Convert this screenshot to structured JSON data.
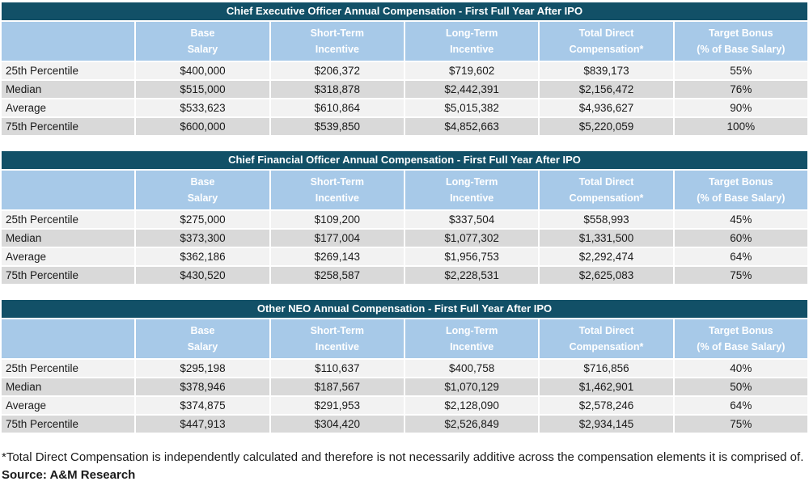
{
  "colors": {
    "title_bar_background": "#125067",
    "header_background": "#A7C9E8",
    "row_light": "#F2F2F2",
    "row_dark": "#D9D9D9",
    "header_text": "#FFFFFF",
    "body_text": "#1A1A1A"
  },
  "columns": [
    [
      "Base",
      "Salary"
    ],
    [
      "Short-Term",
      "Incentive"
    ],
    [
      "Long-Term",
      "Incentive"
    ],
    [
      "Total Direct",
      "Compensation*"
    ],
    [
      "Target Bonus",
      "(% of Base Salary)"
    ]
  ],
  "tables": [
    {
      "title": "Chief Executive Officer Annual Compensation - First Full Year After IPO",
      "rows": [
        {
          "label": "25th Percentile",
          "values": [
            "$400,000",
            "$206,372",
            "$719,602",
            "$839,173",
            "55%"
          ]
        },
        {
          "label": "Median",
          "values": [
            "$515,000",
            "$318,878",
            "$2,442,391",
            "$2,156,472",
            "76%"
          ]
        },
        {
          "label": "Average",
          "values": [
            "$533,623",
            "$610,864",
            "$5,015,382",
            "$4,936,627",
            "90%"
          ]
        },
        {
          "label": "75th Percentile",
          "values": [
            "$600,000",
            "$539,850",
            "$4,852,663",
            "$5,220,059",
            "100%"
          ]
        }
      ]
    },
    {
      "title": "Chief Financial Officer Annual Compensation - First Full Year After IPO",
      "rows": [
        {
          "label": "25th Percentile",
          "values": [
            "$275,000",
            "$109,200",
            "$337,504",
            "$558,993",
            "45%"
          ]
        },
        {
          "label": "Median",
          "values": [
            "$373,300",
            "$177,004",
            "$1,077,302",
            "$1,331,500",
            "60%"
          ]
        },
        {
          "label": "Average",
          "values": [
            "$362,186",
            "$269,143",
            "$1,956,753",
            "$2,292,474",
            "64%"
          ]
        },
        {
          "label": "75th Percentile",
          "values": [
            "$430,520",
            "$258,587",
            "$2,228,531",
            "$2,625,083",
            "75%"
          ]
        }
      ]
    },
    {
      "title": "Other NEO Annual Compensation - First Full Year After IPO",
      "rows": [
        {
          "label": "25th Percentile",
          "values": [
            "$295,198",
            "$110,637",
            "$400,758",
            "$716,856",
            "40%"
          ]
        },
        {
          "label": "Median",
          "values": [
            "$378,946",
            "$187,567",
            "$1,070,129",
            "$1,462,901",
            "50%"
          ]
        },
        {
          "label": "Average",
          "values": [
            "$374,875",
            "$291,953",
            "$2,128,090",
            "$2,578,246",
            "64%"
          ]
        },
        {
          "label": "75th Percentile",
          "values": [
            "$447,913",
            "$304,420",
            "$2,526,849",
            "$2,934,145",
            "75%"
          ]
        }
      ]
    }
  ],
  "footnote": "*Total Direct Compensation is independently calculated and therefore is not necessarily additive across the compensation elements it is comprised of.",
  "source": "Source: A&M Research"
}
